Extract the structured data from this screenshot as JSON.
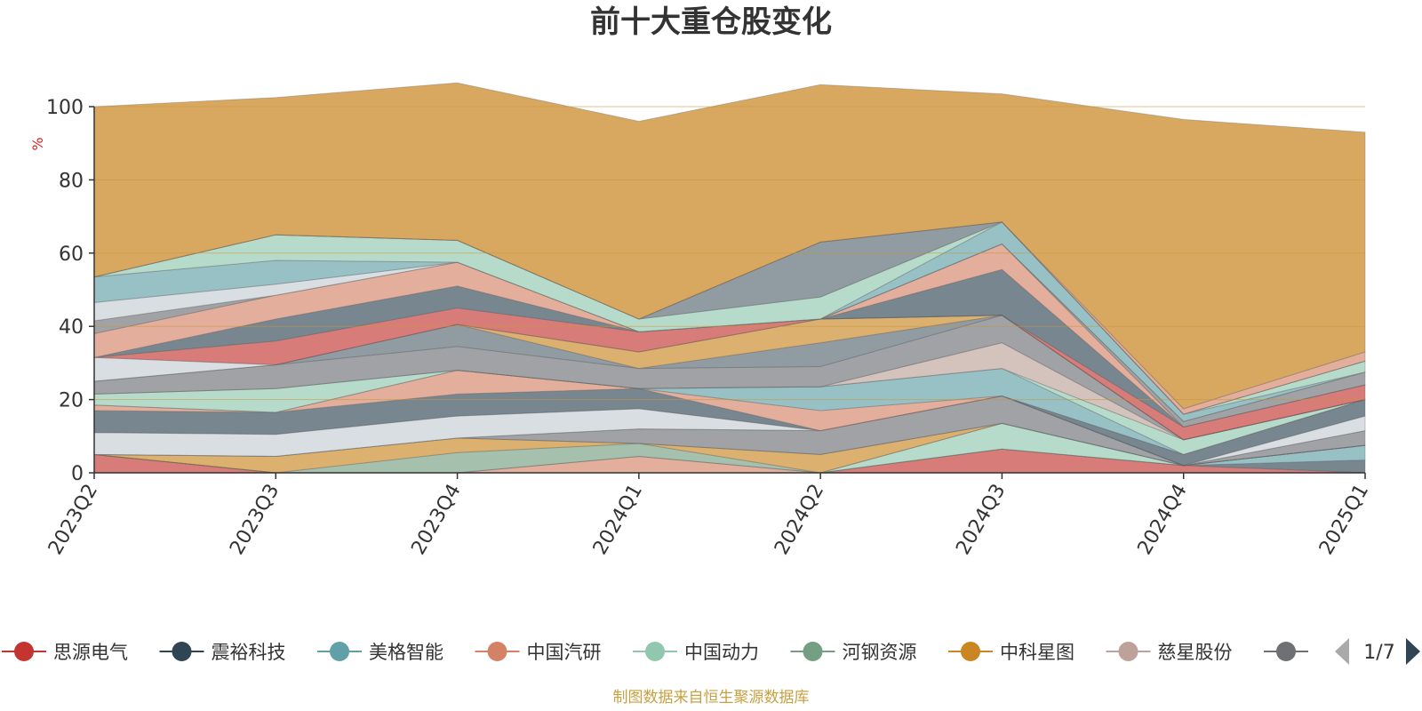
{
  "chart_data": {
    "type": "area",
    "stacked": true,
    "title": "前十大重仓股变化",
    "unit_label": "%",
    "ylim": [
      0,
      100
    ],
    "yticks": [
      0,
      20,
      40,
      60,
      80,
      100
    ],
    "grid": true,
    "legend_position": "bottom",
    "categories": [
      "2023Q2",
      "2023Q3",
      "2023Q4",
      "2024Q1",
      "2024Q2",
      "2024Q3",
      "2024Q4",
      "2025Q1"
    ],
    "series": [
      {
        "name": "思源电气",
        "color": "#c23531",
        "values": [
          5,
          0,
          0,
          0,
          0,
          6.5,
          2,
          0
        ]
      },
      {
        "name": "震裕科技",
        "color": "#2f4554",
        "values": [
          0,
          0,
          0,
          0,
          0,
          0,
          0,
          3.5
        ]
      },
      {
        "name": "美格智能",
        "color": "#61a0a8",
        "values": [
          0,
          0,
          0,
          0,
          0,
          0,
          0,
          4
        ]
      },
      {
        "name": "中国汽研",
        "color": "#d48265",
        "values": [
          0,
          0,
          0,
          4.5,
          0,
          0,
          0,
          0
        ]
      },
      {
        "name": "中国动力",
        "color": "#91c7ae",
        "values": [
          0,
          0,
          0,
          0,
          0,
          7,
          0,
          0
        ]
      },
      {
        "name": "河钢资源",
        "color": "#749f83",
        "values": [
          0,
          0,
          5.5,
          3.5,
          0,
          0,
          0,
          0
        ]
      },
      {
        "name": "中科星图",
        "color": "#ca8622",
        "values": [
          0,
          4.5,
          4,
          0,
          5,
          0,
          0,
          0
        ]
      },
      {
        "name": "慈星股份",
        "color": "#bda29a",
        "values": [
          0,
          0,
          0,
          0,
          0,
          0,
          0,
          0
        ]
      },
      {
        "name": "",
        "color": "#6e7074",
        "values": [
          0,
          0,
          0,
          4,
          6.5,
          7.5,
          0,
          4
        ]
      },
      {
        "name": "",
        "color": "#546570",
        "values": [
          0,
          0,
          0,
          0,
          0,
          0,
          0,
          0
        ]
      },
      {
        "name": "",
        "color": "#c4ccd3",
        "values": [
          6,
          6,
          6,
          5.5,
          0,
          0,
          0,
          4
        ]
      },
      {
        "name": "",
        "color": "#2f4554",
        "values": [
          6,
          6,
          6,
          5.5,
          0,
          0,
          3,
          4.5
        ]
      },
      {
        "name": "",
        "color": "#d48265",
        "values": [
          1.5,
          0,
          6.5,
          0,
          5.5,
          0,
          0,
          0
        ]
      },
      {
        "name": "",
        "color": "#61a0a8",
        "values": [
          0,
          0,
          0,
          0,
          6.5,
          7.5,
          0,
          0
        ]
      },
      {
        "name": "",
        "color": "#91c7ae",
        "values": [
          3,
          6.5,
          0,
          0,
          0,
          0,
          4,
          0
        ]
      },
      {
        "name": "",
        "color": "#bda29a",
        "values": [
          0,
          0,
          0,
          0,
          0,
          7,
          0,
          0
        ]
      },
      {
        "name": "",
        "color": "#6e7074",
        "values": [
          3.5,
          6.5,
          6.5,
          5.5,
          5.5,
          7.5,
          0,
          0
        ]
      },
      {
        "name": "",
        "color": "#546570",
        "values": [
          0,
          0,
          6,
          0,
          6.5,
          0,
          0,
          0
        ]
      },
      {
        "name": "",
        "color": "#ca8622",
        "values": [
          0,
          0,
          0,
          4.5,
          6.5,
          0,
          0,
          0
        ]
      },
      {
        "name": "",
        "color": "#c4ccd3",
        "values": [
          6.5,
          0,
          0,
          0,
          0,
          0,
          0,
          0
        ]
      },
      {
        "name": "",
        "color": "#c23531",
        "values": [
          0,
          6.5,
          4.5,
          5.5,
          0,
          0,
          3.5,
          4
        ]
      },
      {
        "name": "",
        "color": "#2f4554",
        "values": [
          0,
          6,
          6,
          0,
          0,
          12.5,
          0,
          0
        ]
      },
      {
        "name": "",
        "color": "#d48265",
        "values": [
          6.5,
          6.5,
          6.5,
          0,
          0,
          7,
          0,
          0
        ]
      },
      {
        "name": "",
        "color": "#6e7074",
        "values": [
          3.5,
          0,
          0,
          0,
          0,
          0,
          1.5,
          3.5
        ]
      },
      {
        "name": "",
        "color": "#c4ccd3",
        "values": [
          5,
          3,
          0,
          0,
          0,
          0,
          0,
          0
        ]
      },
      {
        "name": "",
        "color": "#61a0a8",
        "values": [
          7,
          6.5,
          0,
          0,
          0,
          6,
          2,
          0
        ]
      },
      {
        "name": "",
        "color": "#91c7ae",
        "values": [
          0,
          7,
          6,
          3.5,
          6,
          0,
          0,
          3
        ]
      },
      {
        "name": "",
        "color": "#546570",
        "values": [
          0,
          0,
          0,
          0,
          15,
          0,
          0,
          0
        ]
      },
      {
        "name": "",
        "color": "#c23531",
        "values": [
          0,
          0,
          0,
          0,
          0,
          0,
          0,
          0
        ]
      },
      {
        "name": "",
        "color": "#d48265",
        "values": [
          0,
          0,
          0,
          0,
          0,
          0,
          1.5,
          2.5
        ]
      },
      {
        "name": "",
        "color": "#ca8622",
        "values": [
          46.5,
          37.5,
          43,
          54,
          43,
          35,
          79,
          60
        ]
      }
    ]
  },
  "legend": {
    "visible_items": [
      {
        "label": "思源电气",
        "color": "#c23531"
      },
      {
        "label": "震裕科技",
        "color": "#2f4554"
      },
      {
        "label": "美格智能",
        "color": "#61a0a8"
      },
      {
        "label": "中国汽研",
        "color": "#d48265"
      },
      {
        "label": "中国动力",
        "color": "#91c7ae"
      },
      {
        "label": "河钢资源",
        "color": "#749f83"
      },
      {
        "label": "中科星图",
        "color": "#ca8622"
      },
      {
        "label": "慈星股份",
        "color": "#bda29a"
      },
      {
        "label": "",
        "color": "#6e7074"
      }
    ],
    "page_indicator": "1/7",
    "prev_icon": "triangle-left-icon",
    "next_icon": "triangle-right-icon",
    "prev_color": "#aaaaaa",
    "next_color": "#2f4554"
  },
  "source_note": "制图数据来自恒生聚源数据库",
  "colors": {
    "unit_label": "#e02020",
    "source_note": "#c8a040",
    "axis": "#333333",
    "grid": "#c8963a"
  }
}
